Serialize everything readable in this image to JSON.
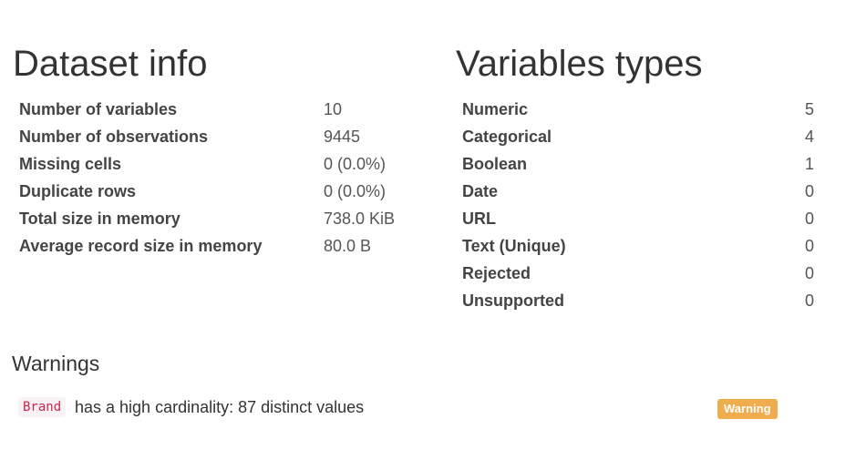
{
  "dataset_info": {
    "title": "Dataset info",
    "rows": [
      {
        "label": "Number of variables",
        "value": "10"
      },
      {
        "label": "Number of observations",
        "value": "9445"
      },
      {
        "label": "Missing cells",
        "value": "0 (0.0%)"
      },
      {
        "label": "Duplicate rows",
        "value": "0 (0.0%)"
      },
      {
        "label": "Total size in memory",
        "value": "738.0 KiB"
      },
      {
        "label": "Average record size in memory",
        "value": "80.0 B"
      }
    ]
  },
  "variables_types": {
    "title": "Variables types",
    "rows": [
      {
        "label": "Numeric",
        "value": "5"
      },
      {
        "label": "Categorical",
        "value": "4"
      },
      {
        "label": "Boolean",
        "value": "1"
      },
      {
        "label": "Date",
        "value": "0"
      },
      {
        "label": "URL",
        "value": "0"
      },
      {
        "label": "Text (Unique)",
        "value": "0"
      },
      {
        "label": "Rejected",
        "value": "0"
      },
      {
        "label": "Unsupported",
        "value": "0"
      }
    ]
  },
  "warnings": {
    "title": "Warnings",
    "items": [
      {
        "variable": "Brand",
        "message": "has a high cardinality: 87 distinct values",
        "badge": "Warning",
        "badge_color": "#f0ad4e"
      }
    ]
  }
}
